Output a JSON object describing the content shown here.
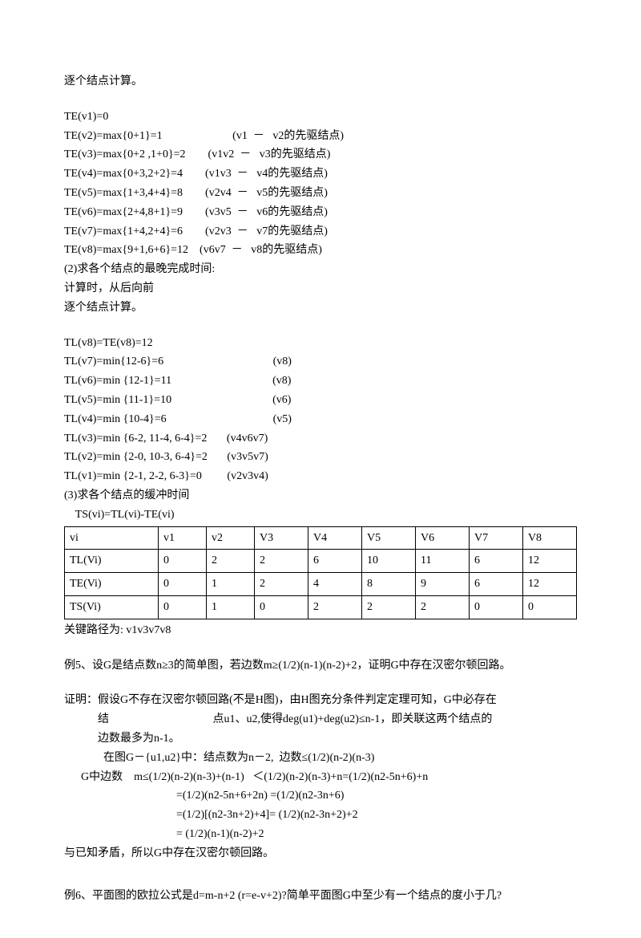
{
  "lines1": [
    "逐个结点计算。"
  ],
  "lines2": [
    "TE(v1)=0",
    "TE(v2)=max{0+1}=1                         (v1  －   v2的先驱结点)",
    "TE(v3)=max{0+2 ,1+0}=2        (v1v2  －   v3的先驱结点)",
    "TE(v4)=max{0+3,2+2}=4        (v1v3  －   v4的先驱结点)",
    "TE(v5)=max{1+3,4+4}=8        (v2v4  －   v5的先驱结点)",
    "TE(v6)=max{2+4,8+1}=9        (v3v5  －   v6的先驱结点)",
    "TE(v7)=max{1+4,2+4}=6        (v2v3  －   v7的先驱结点)",
    "TE(v8)=max{9+1,6+6}=12    (v6v7  －   v8的先驱结点)",
    "(2)求各个结点的最晚完成时间:",
    "计算时，从后向前",
    "逐个结点计算。"
  ],
  "lines3": [
    "TL(v8)=TE(v8)=12",
    "TL(v7)=min{12-6}=6                                       (v8)",
    "TL(v6)=min {12-1}=11                                    (v8)",
    "TL(v5)=min {11-1}=10                                    (v6)",
    "TL(v4)=min {10-4}=6                                      (v5)",
    "TL(v3)=min {6-2, 11-4, 6-4}=2       (v4v6v7)",
    "TL(v2)=min {2-0, 10-3, 6-4}=2       (v3v5v7)",
    "TL(v1)=min {2-1, 2-2, 6-3}=0         (v2v3v4)",
    "(3)求各个结点的缓冲时间",
    "    TS(vi)=TL(vi)-TE(vi)"
  ],
  "table": {
    "rows": [
      [
        "vi",
        "v1",
        "v2",
        "V3",
        "V4",
        "V5",
        "V6",
        "V7",
        "V8"
      ],
      [
        "TL(Vi)",
        "0",
        "2",
        "2",
        "6",
        "10",
        "11",
        "6",
        "12"
      ],
      [
        "TE(Vi)",
        "0",
        "1",
        "2",
        "4",
        "8",
        "9",
        "6",
        "12"
      ],
      [
        "TS(Vi)",
        "0",
        "1",
        "0",
        "2",
        "2",
        "2",
        "0",
        "0"
      ]
    ]
  },
  "lines4": [
    "关键路径为: v1v3v7v8"
  ],
  "lines5": [
    "例5、设G是结点数n≥3的简单图，若边数m≥(1/2)(n-1)(n-2)+2，证明G中存在汉密尔顿回路。"
  ],
  "lines6": [
    "证明：假设G不存在汉密尔顿回路(不是H图)，由H图充分条件判定定理可知，G中必存在",
    "            结                                     点u1、u2,使得deg(u1)+deg(u2)≤n-1，即关联这两个结点的",
    "            边数最多为n-1。",
    "              在图G－{u1,u2}中：结点数为n－2,  边数≤(1/2)(n-2)(n-3)",
    "      G中边数    m≤(1/2)(n-2)(n-3)+(n-1)   ＜(1/2)(n-2)(n-3)+n=(1/2)(n2-5n+6)+n",
    "                                        =(1/2)(n2-5n+6+2n) =(1/2)(n2-3n+6)",
    "                                        =(1/2)[(n2-3n+2)+4]= (1/2)(n2-3n+2)+2",
    "                                        = (1/2)(n-1)(n-2)+2",
    "与已知矛盾，所以G中存在汉密尔顿回路。"
  ],
  "lines7": [
    "例6、平面图的欧拉公式是d=m-n+2 (r=e-v+2)?简单平面图G中至少有一个结点的度小于几?"
  ]
}
